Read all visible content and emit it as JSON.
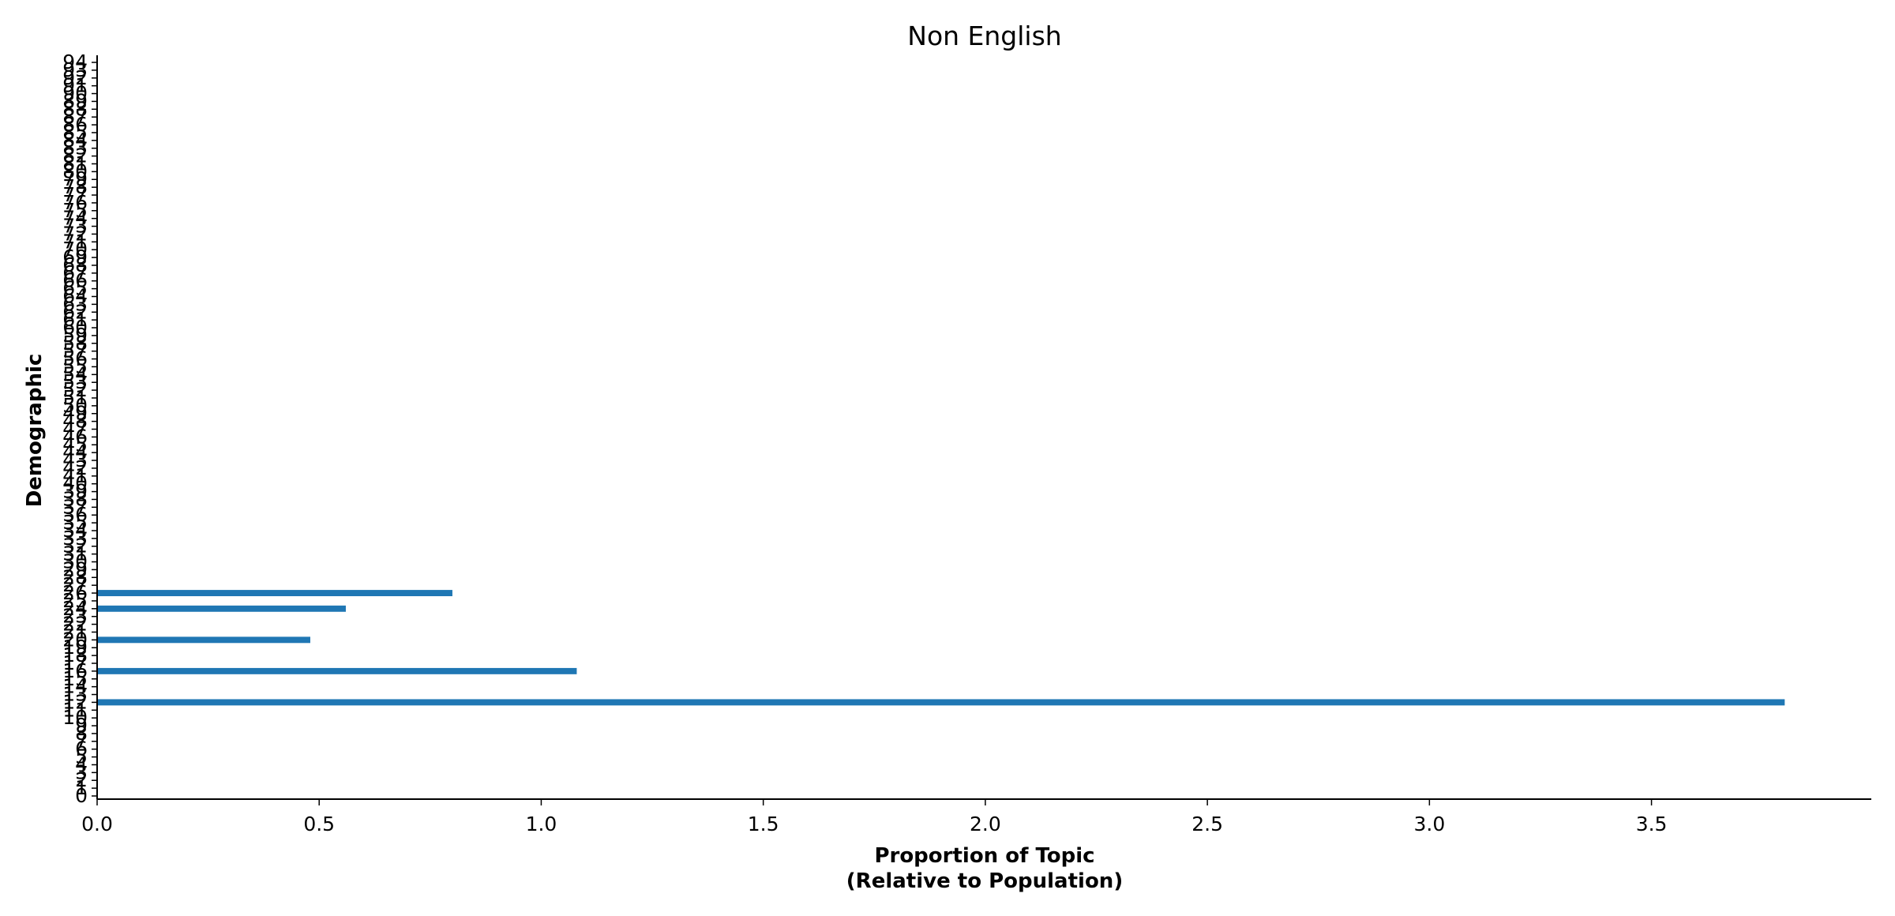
{
  "chart_data": {
    "type": "bar",
    "orientation": "horizontal",
    "title": "Non English",
    "xlabel_line1": "Proportion of Topic",
    "xlabel_line2": "(Relative to Population)",
    "ylabel": "Demographic",
    "categories": [
      "0",
      "1",
      "2",
      "3",
      "4",
      "5",
      "6",
      "7",
      "8",
      "9",
      "10",
      "11",
      "12",
      "13",
      "14",
      "15",
      "16",
      "17",
      "18",
      "19",
      "20",
      "21",
      "22",
      "23",
      "24",
      "25",
      "26",
      "27",
      "28",
      "29",
      "30",
      "31",
      "32",
      "33",
      "34",
      "35",
      "36",
      "37",
      "38",
      "39",
      "40",
      "41",
      "42",
      "43",
      "44",
      "45",
      "46",
      "47",
      "48",
      "49",
      "50",
      "51",
      "52",
      "53",
      "54",
      "55",
      "56",
      "57",
      "58",
      "59",
      "60",
      "61",
      "62",
      "63",
      "64",
      "65",
      "66",
      "67",
      "68",
      "69",
      "70",
      "71",
      "72",
      "73",
      "74",
      "75",
      "76",
      "77",
      "78",
      "79",
      "80",
      "81",
      "82",
      "83",
      "84",
      "85",
      "86",
      "87",
      "88",
      "89",
      "90",
      "91",
      "92",
      "93",
      "94"
    ],
    "values": [
      0,
      0,
      0,
      0,
      0,
      0,
      0,
      0,
      0,
      0,
      0,
      0,
      3.8,
      0,
      0,
      0,
      1.08,
      0,
      0,
      0,
      0.48,
      0,
      0,
      0,
      0.56,
      0,
      0.8,
      0,
      0,
      0,
      0,
      0,
      0,
      0,
      0,
      0,
      0,
      0,
      0,
      0,
      0,
      0,
      0,
      0,
      0,
      0,
      0,
      0,
      0,
      0,
      0,
      0,
      0,
      0,
      0,
      0,
      0,
      0,
      0,
      0,
      0,
      0,
      0,
      0,
      0,
      0,
      0,
      0,
      0,
      0,
      0,
      0,
      0,
      0,
      0,
      0,
      0,
      0,
      0,
      0,
      0,
      0,
      0,
      0,
      0,
      0,
      0,
      0,
      0,
      0,
      0,
      0,
      0,
      0,
      0
    ],
    "xticks": [
      0.0,
      0.5,
      1.0,
      1.5,
      2.0,
      2.5,
      3.0,
      3.5
    ],
    "xtick_labels": [
      "0.0",
      "0.5",
      "1.0",
      "1.5",
      "2.0",
      "2.5",
      "3.0",
      "3.5"
    ],
    "xlim": [
      0,
      4.0
    ],
    "grid": false,
    "colors": {
      "bar": "#1f77b4",
      "axis": "#000000"
    }
  }
}
